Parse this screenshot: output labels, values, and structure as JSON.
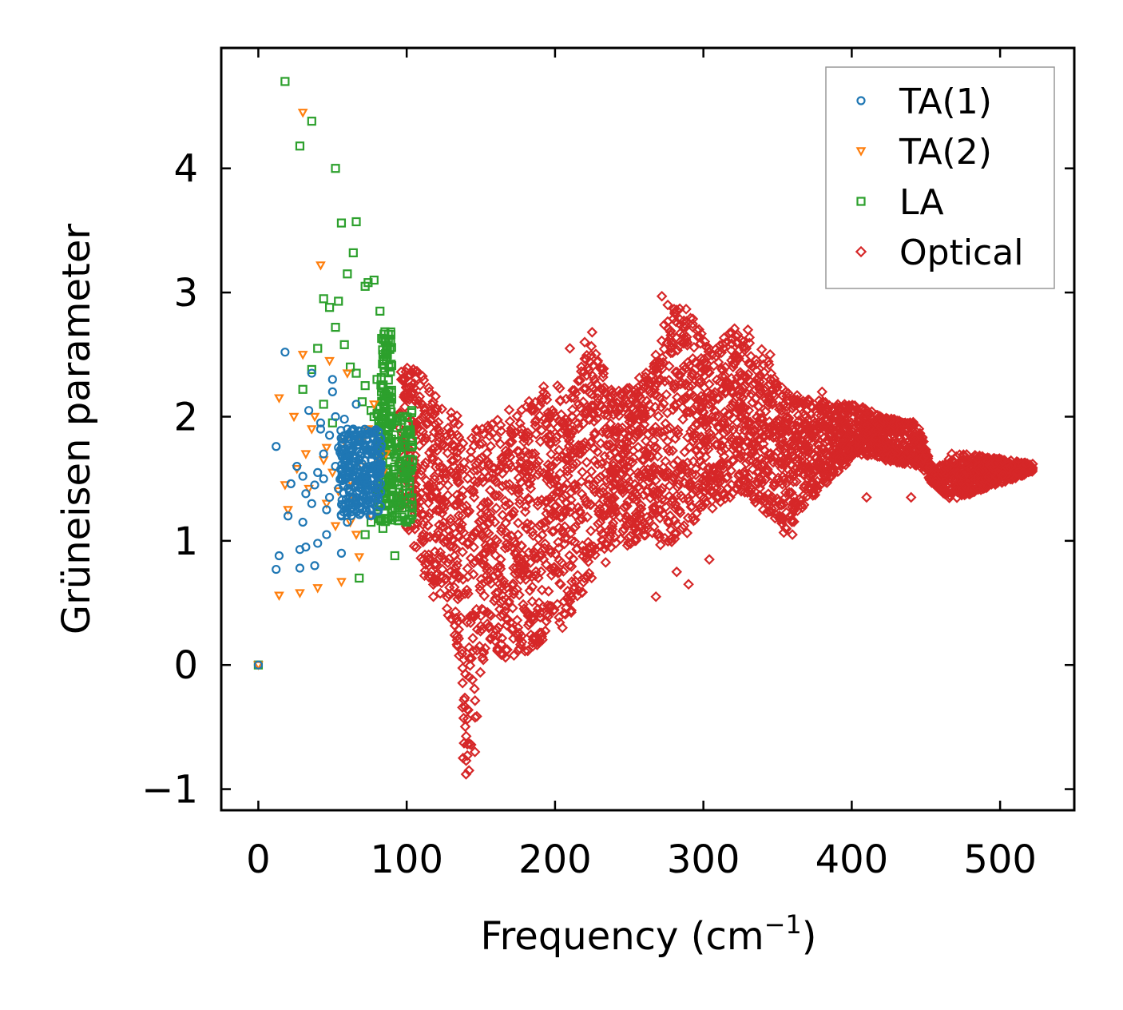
{
  "chart_data": {
    "type": "scatter",
    "title": "",
    "xlabel": "Frequency (cm",
    "xlabel_sup": "−1",
    "xlabel_close": ")",
    "ylabel": "Grüneisen parameter",
    "xlim": [
      -25,
      550
    ],
    "ylim": [
      -1.17,
      4.97
    ],
    "xticks": [
      0,
      100,
      200,
      300,
      400,
      500
    ],
    "xtick_labels": [
      "0",
      "100",
      "200",
      "300",
      "400",
      "500"
    ],
    "yticks": [
      -1,
      0,
      1,
      2,
      3,
      4
    ],
    "ytick_labels": [
      "−1",
      "0",
      "1",
      "2",
      "3",
      "4"
    ],
    "grid": false,
    "legend_position": "top-right",
    "series": [
      {
        "name": "TA(1)",
        "marker": "circle",
        "color": "#1f77b4",
        "x": [
          0,
          12,
          12,
          14,
          18,
          20,
          22,
          26,
          28,
          30,
          30,
          32,
          34,
          36,
          38,
          40,
          42,
          44,
          46,
          48,
          50,
          52,
          54,
          56,
          58,
          60,
          62,
          64,
          66,
          68,
          70,
          72,
          74,
          76,
          78,
          80,
          28,
          36,
          44,
          52,
          60,
          68,
          32,
          40,
          48,
          56,
          64,
          72,
          80,
          38,
          46,
          54,
          62,
          70,
          78,
          42,
          50,
          58,
          66,
          74
        ],
        "y": [
          0,
          1.76,
          0.77,
          0.88,
          2.52,
          1.2,
          1.46,
          1.6,
          0.93,
          1.15,
          1.52,
          1.38,
          2.05,
          2.35,
          1.45,
          0.98,
          1.9,
          1.5,
          1.25,
          1.85,
          2.3,
          1.6,
          1.42,
          0.9,
          1.98,
          1.7,
          1.55,
          1.35,
          2.1,
          1.48,
          1.62,
          1.4,
          1.58,
          1.5,
          1.45,
          1.55,
          0.78,
          1.3,
          1.7,
          2.0,
          1.15,
          1.8,
          0.95,
          1.55,
          1.35,
          1.2,
          1.9,
          1.45,
          1.6,
          0.8,
          1.05,
          1.75,
          1.4,
          1.25,
          1.5,
          1.95,
          2.2,
          1.65,
          1.3,
          1.7
        ]
      },
      {
        "name": "TA(2)",
        "marker": "triangle-down",
        "color": "#ff7f0e",
        "x": [
          0,
          14,
          14,
          18,
          20,
          24,
          26,
          28,
          30,
          32,
          34,
          36,
          40,
          42,
          44,
          46,
          48,
          50,
          52,
          56,
          58,
          60,
          62,
          64,
          66,
          68,
          70,
          72,
          74,
          76,
          80,
          84,
          30,
          38,
          46,
          54,
          62,
          70,
          78,
          86
        ],
        "y": [
          0,
          0.56,
          2.15,
          1.45,
          1.25,
          2.0,
          1.58,
          0.58,
          4.45,
          1.7,
          1.42,
          1.9,
          0.62,
          3.22,
          1.65,
          1.3,
          2.45,
          1.55,
          1.12,
          0.67,
          1.8,
          2.35,
          1.48,
          1.35,
          1.05,
          0.87,
          1.6,
          1.5,
          1.9,
          1.2,
          1.65,
          1.55,
          2.5,
          2.0,
          1.75,
          1.4,
          1.15,
          1.8,
          2.1,
          1.7
        ]
      },
      {
        "name": "LA",
        "marker": "square",
        "color": "#2ca02c",
        "x": [
          0,
          18,
          28,
          36,
          52,
          56,
          66,
          64,
          60,
          74,
          72,
          78,
          82,
          44,
          48,
          52,
          54,
          58,
          62,
          66,
          70,
          72,
          76,
          80,
          84,
          86,
          88,
          90,
          92,
          94,
          96,
          98,
          100,
          102,
          104,
          86,
          88,
          90,
          84,
          82,
          80,
          76,
          72,
          68,
          92,
          94,
          96,
          98,
          100,
          90,
          86,
          78,
          88,
          30,
          36,
          40,
          44,
          50,
          96,
          102
        ],
        "y": [
          0,
          4.7,
          4.18,
          4.38,
          4.0,
          3.56,
          3.57,
          3.32,
          3.15,
          3.08,
          3.05,
          3.1,
          2.85,
          2.95,
          2.88,
          2.72,
          2.93,
          2.58,
          2.4,
          2.35,
          2.12,
          2.25,
          2.05,
          2.3,
          2.5,
          2.6,
          2.2,
          1.95,
          1.8,
          1.75,
          1.6,
          1.5,
          1.55,
          1.45,
          1.65,
          1.4,
          1.3,
          1.2,
          1.1,
          1.35,
          1.25,
          1.15,
          1.05,
          0.7,
          0.88,
          1.45,
          1.62,
          1.52,
          1.38,
          1.72,
          1.85,
          2.0,
          2.4,
          2.22,
          2.38,
          2.55,
          2.1,
          1.95,
          1.3,
          1.48
        ]
      },
      {
        "name": "Optical",
        "marker": "diamond",
        "color": "#d62728",
        "envelope": [
          [
            95,
            1.25,
            2.45
          ],
          [
            110,
            0.8,
            2.35
          ],
          [
            125,
            0.5,
            2.1
          ],
          [
            135,
            0.1,
            2.0
          ],
          [
            140,
            -0.9,
            1.9
          ],
          [
            145,
            -0.6,
            1.95
          ],
          [
            155,
            0.2,
            2.0
          ],
          [
            165,
            0.05,
            2.05
          ],
          [
            180,
            0.1,
            2.1
          ],
          [
            195,
            0.2,
            2.3
          ],
          [
            210,
            0.4,
            2.2
          ],
          [
            225,
            0.7,
            2.6
          ],
          [
            240,
            0.9,
            2.2
          ],
          [
            255,
            1.0,
            2.3
          ],
          [
            265,
            1.05,
            2.4
          ],
          [
            275,
            0.9,
            2.8
          ],
          [
            285,
            1.0,
            2.95
          ],
          [
            300,
            1.2,
            2.65
          ],
          [
            310,
            1.3,
            2.6
          ],
          [
            325,
            1.4,
            2.75
          ],
          [
            340,
            1.25,
            2.55
          ],
          [
            355,
            1.05,
            2.2
          ],
          [
            370,
            1.3,
            2.15
          ],
          [
            390,
            1.55,
            2.1
          ],
          [
            405,
            1.7,
            2.1
          ],
          [
            420,
            1.65,
            2.0
          ],
          [
            445,
            1.6,
            1.95
          ],
          [
            455,
            1.45,
            1.55
          ],
          [
            468,
            1.32,
            1.72
          ],
          [
            490,
            1.42,
            1.68
          ],
          [
            522,
            1.55,
            1.62
          ]
        ],
        "outliers_x": [
          134,
          138,
          140,
          142,
          146,
          128,
          118,
          112,
          205,
          210,
          220,
          225,
          268,
          272,
          276,
          282,
          290,
          304,
          318,
          330,
          345,
          360,
          380,
          410,
          440
        ],
        "outliers_y": [
          0.2,
          -0.75,
          -0.88,
          -0.85,
          -0.7,
          0.4,
          0.55,
          0.72,
          0.3,
          2.55,
          2.6,
          2.68,
          0.55,
          2.97,
          2.9,
          0.75,
          0.65,
          0.85,
          1.35,
          2.7,
          2.5,
          1.05,
          2.2,
          1.35,
          1.35
        ]
      }
    ]
  }
}
